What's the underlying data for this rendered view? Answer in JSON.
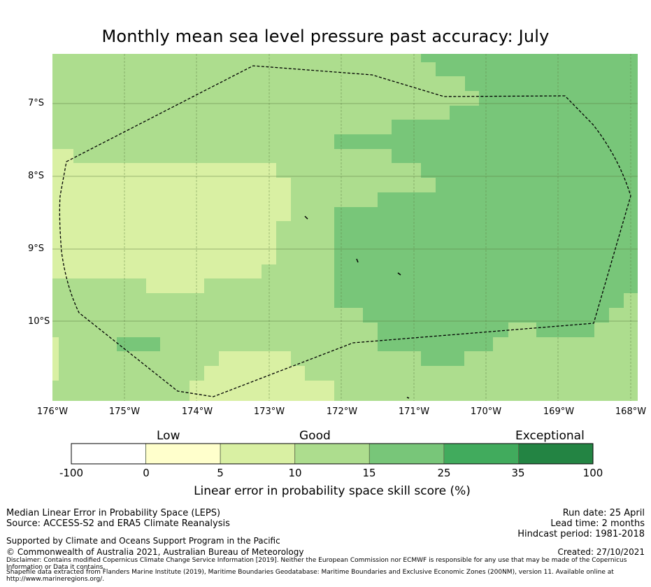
{
  "title": "Monthly mean sea level pressure past accuracy: July",
  "map": {
    "lat_labels": [
      "7°S",
      "8°S",
      "9°S",
      "10°S"
    ],
    "lon_labels": [
      "176°W",
      "175°W",
      "174°W",
      "173°W",
      "172°W",
      "171°W",
      "170°W",
      "169°W",
      "168°W"
    ],
    "extent": {
      "lon_min": -176,
      "lon_max": -168,
      "lat_min": -11.1,
      "lat_max": -6.3
    },
    "boundary": "Maritime boundary (dashed line)"
  },
  "colorbar": {
    "categories": [
      "Low",
      "Good",
      "Exceptional"
    ],
    "ticks": [
      "-100",
      "0",
      "5",
      "10",
      "15",
      "25",
      "35",
      "100"
    ],
    "colors": [
      "#ffffff",
      "#ffffcc",
      "#d9f0a3",
      "#addd8e",
      "#78c679",
      "#41ab5d",
      "#238443"
    ],
    "label": "Linear error in probability space skill score (%)"
  },
  "footer": {
    "left1": "Median Linear Error in Probability Space (LEPS)",
    "left2": "Source: ACCESS-S2 and ERA5 Climate Reanalysis",
    "left3": "Supported by Climate and Oceans Support Program in the Pacific",
    "left4": "© Commonwealth of Australia 2021, Australian Bureau of Meteorology",
    "right1": "Run date: 25 April",
    "right2": "Lead time: 2 months",
    "right3": "Hindcast period: 1981-2018",
    "right4": "Created: 27/10/2021",
    "disclaimer": "Disclaimer: Contains modified Copernicus Climate Change Service Information [2019]. Neither the European Commission nor ECMWF is responsible for any use that may be made of the Copernicus Information or Data it contains.",
    "shapefile": "Shapefile data extracted from Flanders Marine Institute (2019), Maritime Boundaries Geodatabase: Maritime Boundaries and Exclusive Economic Zones (200NM), version 11. Available online at http://www.marineregions.org/."
  }
}
